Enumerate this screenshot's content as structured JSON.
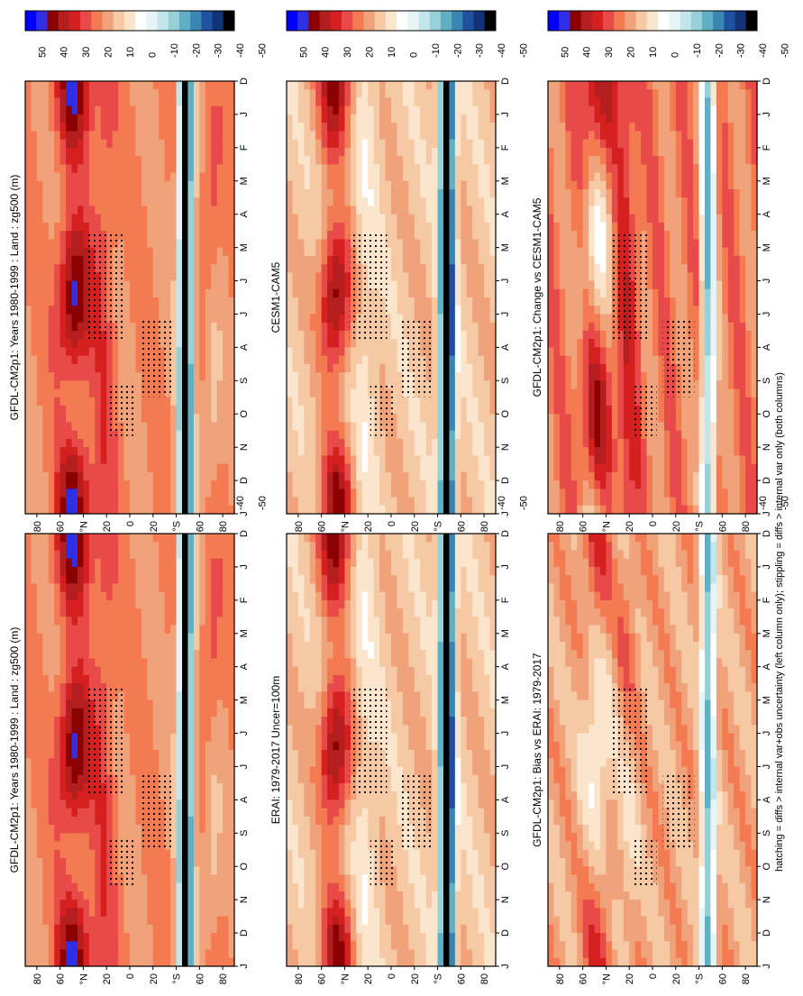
{
  "footnote": "hatching = diffs > internal var+obs uncertainty (left column only); stippling = diffs > internal var only (both columns)",
  "palette": [
    "#0000ff",
    "#2f2fe6",
    "#8b0000",
    "#b41e1e",
    "#d62020",
    "#e84a4a",
    "#f47a52",
    "#f0a27a",
    "#f6c9a5",
    "#fbe5cc",
    "#ffffff",
    "#e6f4f6",
    "#c2e6ec",
    "#96d0d8",
    "#5fb0c4",
    "#3a86b3",
    "#2050a0",
    "#123278",
    "#000000"
  ],
  "colorbar_labels": [
    "50",
    "40",
    "30",
    "20",
    "10",
    "0",
    "-10",
    "-20",
    "-30",
    "-40",
    "-50"
  ],
  "months": [
    "D",
    "J",
    "F",
    "M",
    "A",
    "M",
    "J",
    "J",
    "A",
    "S",
    "O",
    "N",
    "D",
    "J"
  ],
  "lat_labels": [
    "80",
    "60",
    "°N",
    "20",
    "0",
    "20",
    "°S",
    "60",
    "80"
  ],
  "chart_data": [
    {
      "type": "heatmap",
      "title": "GFDL-CM2p1: Years 1980-1999 : Land : zg500 (m)",
      "xlabel": "",
      "ylabel": "",
      "x": "month",
      "y": "latitude",
      "ylim": [
        -90,
        90
      ],
      "colorbar_range": [
        -50,
        50
      ],
      "field": "zg500"
    },
    {
      "type": "heatmap",
      "title": "GFDL-CM2p1: Years 1980-1999 : Land : zg500 (m)",
      "xlabel": "",
      "ylabel": "",
      "x": "month",
      "y": "latitude",
      "ylim": [
        -90,
        90
      ],
      "colorbar_range": [
        -50,
        50
      ],
      "field": "zg500"
    },
    {
      "type": "heatmap",
      "title": "ERAI: 1979-2017 Uncer=100m",
      "xlabel": "",
      "ylabel": "",
      "x": "month",
      "y": "latitude",
      "ylim": [
        -90,
        90
      ],
      "colorbar_range": [
        -50,
        50
      ],
      "field": "zg500"
    },
    {
      "type": "heatmap",
      "title": "CESM1-CAM5",
      "xlabel": "",
      "ylabel": "",
      "x": "month",
      "y": "latitude",
      "ylim": [
        -90,
        90
      ],
      "colorbar_range": [
        -50,
        50
      ],
      "field": "zg500"
    },
    {
      "type": "heatmap",
      "title": "GFDL-CM2p1: Bias vs ERAI: 1979-2017",
      "xlabel": "",
      "ylabel": "",
      "x": "month",
      "y": "latitude",
      "ylim": [
        -90,
        90
      ],
      "colorbar_range": [
        -50,
        50
      ],
      "field": "zg500"
    },
    {
      "type": "heatmap",
      "title": "GFDL-CM2p1: Change vs CESM1-CAM5",
      "xlabel": "",
      "ylabel": "",
      "x": "month",
      "y": "latitude",
      "ylim": [
        -90,
        90
      ],
      "colorbar_range": [
        -50,
        50
      ],
      "field": "zg500"
    }
  ]
}
